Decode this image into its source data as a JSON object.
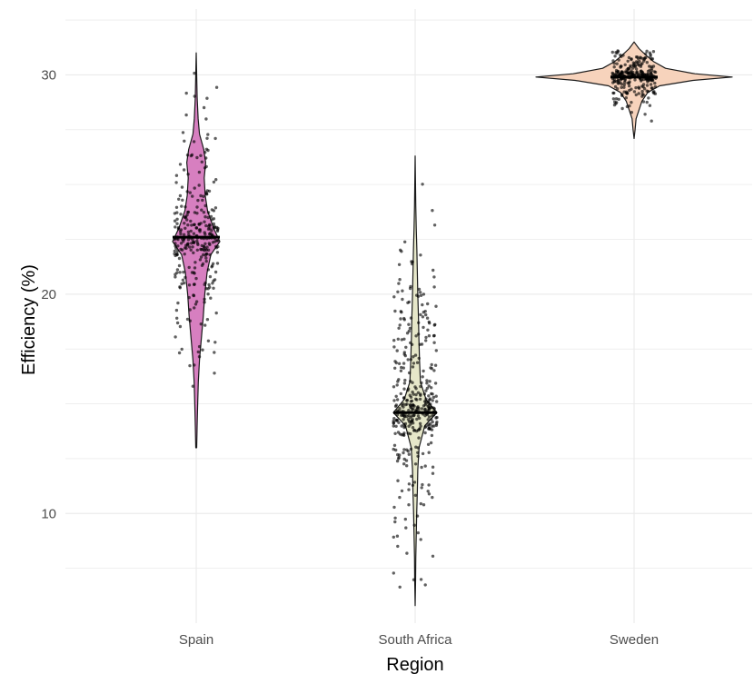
{
  "chart_data": {
    "type": "violin",
    "title": "",
    "xlabel": "Region",
    "ylabel": "Efficiency (%)",
    "categories": [
      "Spain",
      "South Africa",
      "Sweden"
    ],
    "ylim": [
      5,
      33
    ],
    "yticks": [
      10,
      20,
      30
    ],
    "y_tick_labels": [
      "10",
      "20",
      "30"
    ],
    "grid": true,
    "legend": "none",
    "series": [
      {
        "category": "Spain",
        "color": "#d77fc0",
        "min": 13.0,
        "max": 31.0,
        "median": 22.6,
        "n_points": 300,
        "mean": 22.8,
        "sd": 2.6,
        "density": [
          [
            13.0,
            0.02
          ],
          [
            14.0,
            0.04
          ],
          [
            15.0,
            0.06
          ],
          [
            16.0,
            0.09
          ],
          [
            17.0,
            0.14
          ],
          [
            18.0,
            0.22
          ],
          [
            19.0,
            0.3
          ],
          [
            20.0,
            0.36
          ],
          [
            21.0,
            0.46
          ],
          [
            21.8,
            0.62
          ],
          [
            22.4,
            1.0
          ],
          [
            23.0,
            0.74
          ],
          [
            23.8,
            0.48
          ],
          [
            24.5,
            0.38
          ],
          [
            25.3,
            0.34
          ],
          [
            26.0,
            0.4
          ],
          [
            26.6,
            0.32
          ],
          [
            27.3,
            0.14
          ],
          [
            28.0,
            0.08
          ],
          [
            29.0,
            0.04
          ],
          [
            30.0,
            0.02
          ],
          [
            31.0,
            0.0
          ]
        ]
      },
      {
        "category": "South Africa",
        "color": "#e6e7c9",
        "min": 5.8,
        "max": 26.3,
        "median": 14.6,
        "n_points": 380,
        "mean": 15.2,
        "sd": 3.4,
        "density": [
          [
            5.8,
            0.0
          ],
          [
            7.0,
            0.02
          ],
          [
            8.0,
            0.03
          ],
          [
            9.0,
            0.05
          ],
          [
            10.0,
            0.07
          ],
          [
            11.0,
            0.1
          ],
          [
            12.0,
            0.12
          ],
          [
            13.0,
            0.18
          ],
          [
            14.0,
            0.44
          ],
          [
            14.6,
            1.0
          ],
          [
            15.2,
            0.5
          ],
          [
            16.0,
            0.24
          ],
          [
            17.0,
            0.2
          ],
          [
            18.0,
            0.17
          ],
          [
            19.0,
            0.15
          ],
          [
            20.0,
            0.12
          ],
          [
            21.0,
            0.1
          ],
          [
            22.0,
            0.08
          ],
          [
            23.0,
            0.05
          ],
          [
            24.0,
            0.03
          ],
          [
            25.0,
            0.015
          ],
          [
            26.3,
            0.0
          ]
        ]
      },
      {
        "category": "Sweden",
        "color": "#f7d3bc",
        "min": 27.1,
        "max": 31.5,
        "median": 29.9,
        "n_points": 280,
        "mean": 29.95,
        "sd": 0.75,
        "density": [
          [
            27.1,
            0.0
          ],
          [
            27.5,
            0.01
          ],
          [
            28.0,
            0.02
          ],
          [
            28.4,
            0.05
          ],
          [
            28.8,
            0.08
          ],
          [
            29.2,
            0.14
          ],
          [
            29.5,
            0.26
          ],
          [
            29.75,
            0.6
          ],
          [
            29.9,
            1.0
          ],
          [
            30.05,
            0.62
          ],
          [
            30.3,
            0.32
          ],
          [
            30.6,
            0.2
          ],
          [
            30.9,
            0.12
          ],
          [
            31.2,
            0.05
          ],
          [
            31.5,
            0.0
          ]
        ]
      }
    ]
  }
}
